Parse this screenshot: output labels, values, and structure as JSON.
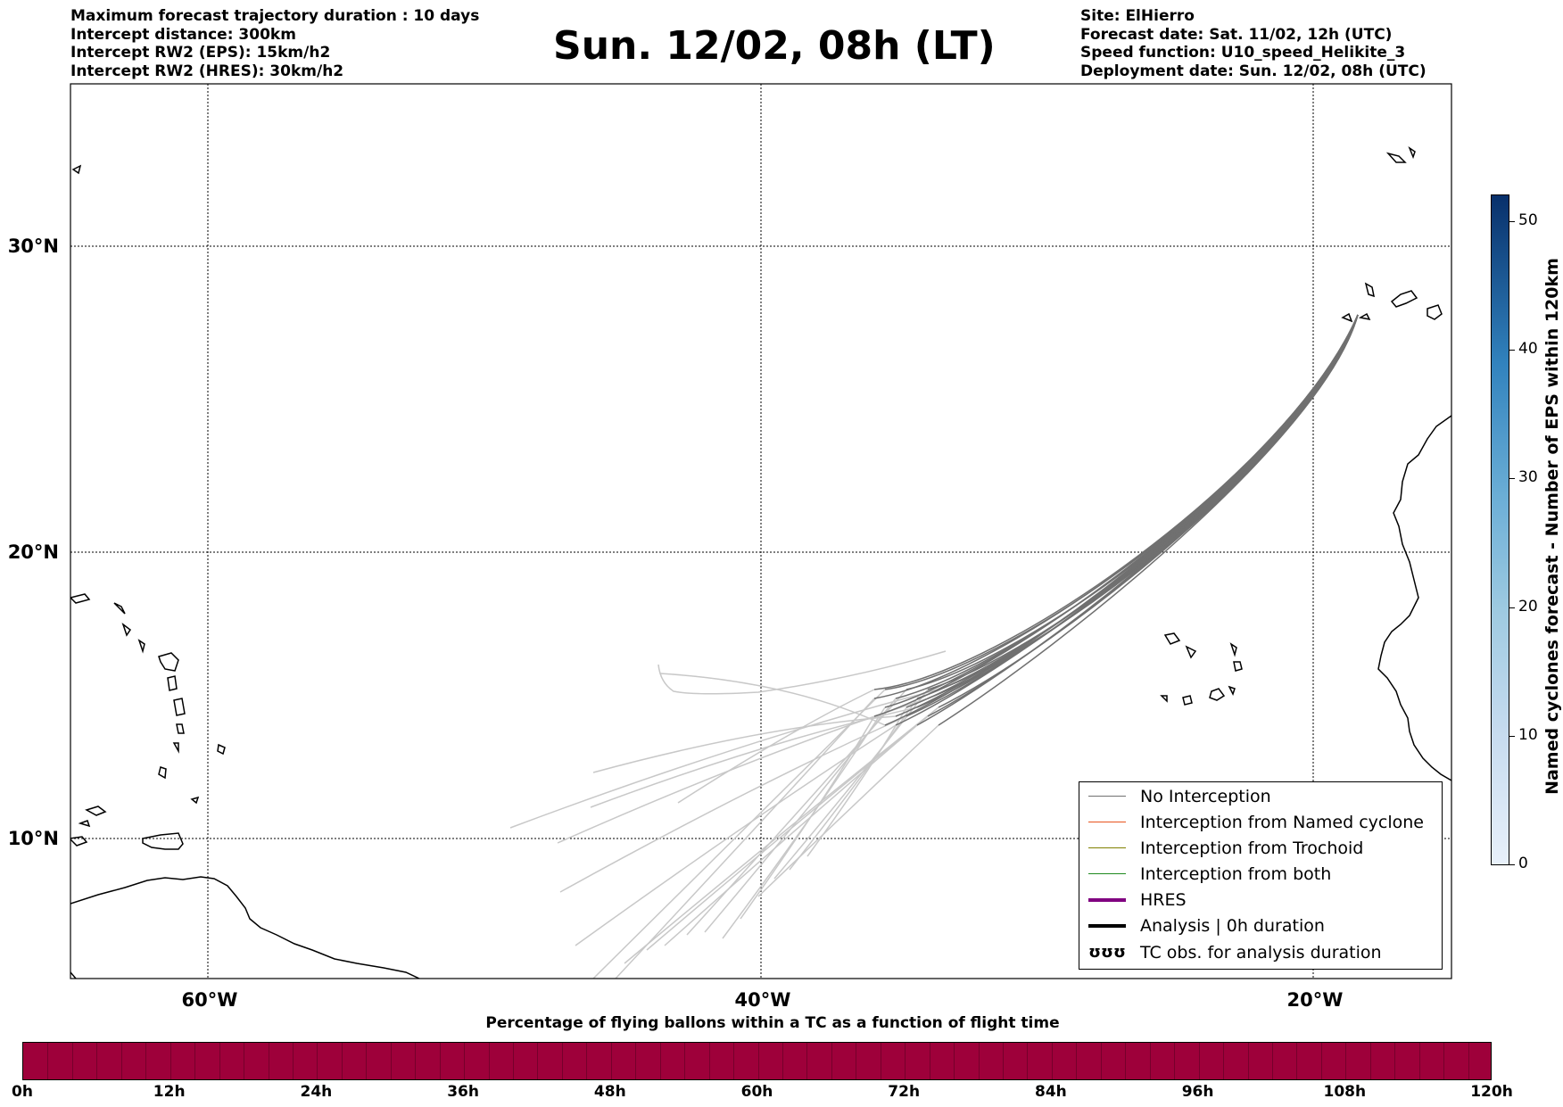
{
  "header": {
    "left_lines": [
      "Maximum forecast trajectory duration : 10 days",
      "Intercept distance: 300km",
      "Intercept RW2 (EPS):  15km/h2",
      "Intercept RW2 (HRES): 30km/h2"
    ],
    "title": "Sun. 12/02, 08h (LT)",
    "right_lines": [
      "Site: ElHierro",
      "Forecast date: Sat. 11/02, 12h (UTC)",
      "Speed function: U10_speed_Helikite_3",
      "Deployment date: Sun. 12/02, 08h (UTC)"
    ]
  },
  "map": {
    "lon_labels": [
      "60°W",
      "40°W",
      "20°W"
    ],
    "lat_labels": [
      "30°N",
      "20°N",
      "10°N"
    ],
    "colors": {
      "coast": "#000000",
      "trajectory_recent": "#707070",
      "trajectory_old": "#c8c8c8",
      "grid": "#000000"
    }
  },
  "legend": {
    "items": [
      {
        "label": "No Interception",
        "color": "#707070",
        "style": "thin"
      },
      {
        "label": "Interception from Named cyclone",
        "color": "#e8531d",
        "style": "thin"
      },
      {
        "label": "Interception from Trochoid",
        "color": "#808000",
        "style": "thin"
      },
      {
        "label": "Interception from both",
        "color": "#1f8a1f",
        "style": "thin"
      },
      {
        "label": "HRES",
        "color": "#800080",
        "style": "thick"
      },
      {
        "label": "Analysis | 0h duration",
        "color": "#000000",
        "style": "thick"
      },
      {
        "label": "TC obs. for analysis duration",
        "color": "#000000",
        "style": "symbol",
        "symbol": "ʊʊʊ"
      }
    ]
  },
  "colorbar_vertical": {
    "title": "Named cyclones forecast - Number of EPS within 120km",
    "ticks": [
      "0",
      "10",
      "20",
      "30",
      "40",
      "50"
    ],
    "range": [
      0,
      52
    ],
    "colors": {
      "low": "#e8f0fa",
      "high": "#08306b"
    }
  },
  "colorbar_horizontal": {
    "title": "Percentage of flying ballons within a TC as a function of flight time",
    "ticks": [
      "0h",
      "12h",
      "24h",
      "36h",
      "48h",
      "60h",
      "72h",
      "84h",
      "96h",
      "108h",
      "120h"
    ],
    "fill_color": "#9e003a"
  }
}
